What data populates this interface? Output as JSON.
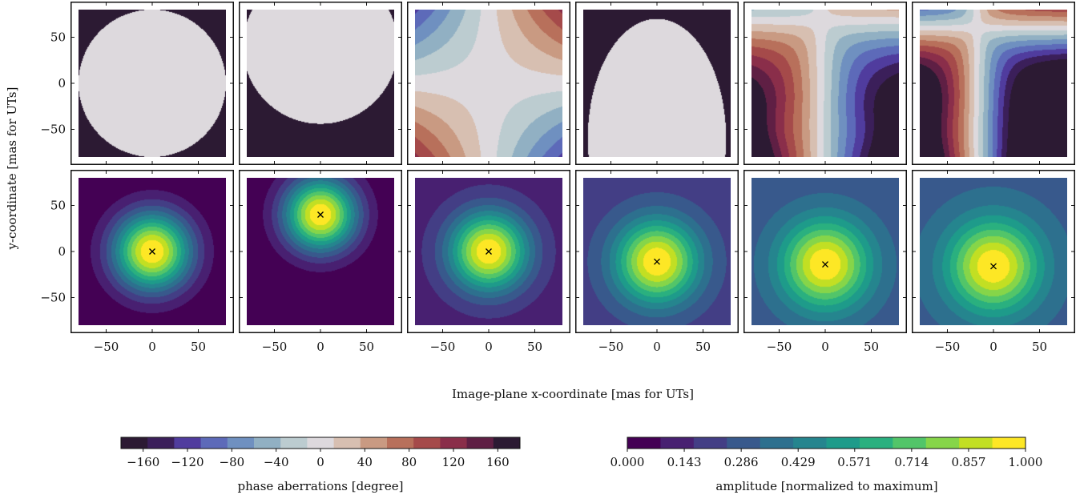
{
  "chart_data": {
    "type": "heatmap",
    "ylabel": "y-coordinate [mas for UTs]",
    "xlabel": "Image-plane x-coordinate [mas for UTs]",
    "x_ticks": [
      -50,
      0,
      50
    ],
    "y_ticks": [
      50,
      0,
      -50
    ],
    "xlim": [
      -80,
      80
    ],
    "ylim": [
      -80,
      80
    ],
    "phase_colorbar": {
      "label": "phase aberrations [degree]",
      "ticks": [
        -160,
        -120,
        -80,
        -40,
        0,
        40,
        80,
        120,
        160
      ],
      "range": [
        -180,
        180
      ],
      "colors": [
        "#2c1a33",
        "#3b1f5a",
        "#503c9e",
        "#5d6ab9",
        "#6f90c0",
        "#91b0c3",
        "#bcccd0",
        "#ddd9dd",
        "#d7bfb1",
        "#c99a82",
        "#b8705b",
        "#a54a4a",
        "#8a2e4a",
        "#5f1f44",
        "#2c1a33"
      ]
    },
    "amplitude_colorbar": {
      "label": "amplitude [normalized to maximum]",
      "ticks": [
        "0.000",
        "0.143",
        "0.286",
        "0.429",
        "0.571",
        "0.714",
        "0.857",
        "1.000"
      ],
      "range": [
        0,
        1
      ],
      "colors": [
        "#440154",
        "#482071",
        "#433e85",
        "#38598c",
        "#2d708e",
        "#25858e",
        "#1e9b8a",
        "#2ab07f",
        "#52c569",
        "#86d549",
        "#c2df23",
        "#fde725"
      ]
    },
    "phase_panels": [
      {
        "kind": "disk"
      },
      {
        "kind": "shifted-disk"
      },
      {
        "kind": "astig"
      },
      {
        "kind": "dome"
      },
      {
        "kind": "coma-a"
      },
      {
        "kind": "coma-b"
      }
    ],
    "amplitude_panels": [
      {
        "peak": [
          0,
          0
        ],
        "sigma": 30,
        "floor": 0.0
      },
      {
        "peak": [
          0,
          40
        ],
        "sigma": 28,
        "floor": 0.0
      },
      {
        "peak": [
          0,
          0
        ],
        "sigma": 30,
        "floor": 0.12
      },
      {
        "peak": [
          0,
          -11
        ],
        "sigma": 32,
        "floor": 0.2
      },
      {
        "peak": [
          0,
          -14
        ],
        "sigma": 34,
        "floor": 0.28
      },
      {
        "peak": [
          0,
          -16
        ],
        "sigma": 35,
        "floor": 0.3
      }
    ]
  }
}
